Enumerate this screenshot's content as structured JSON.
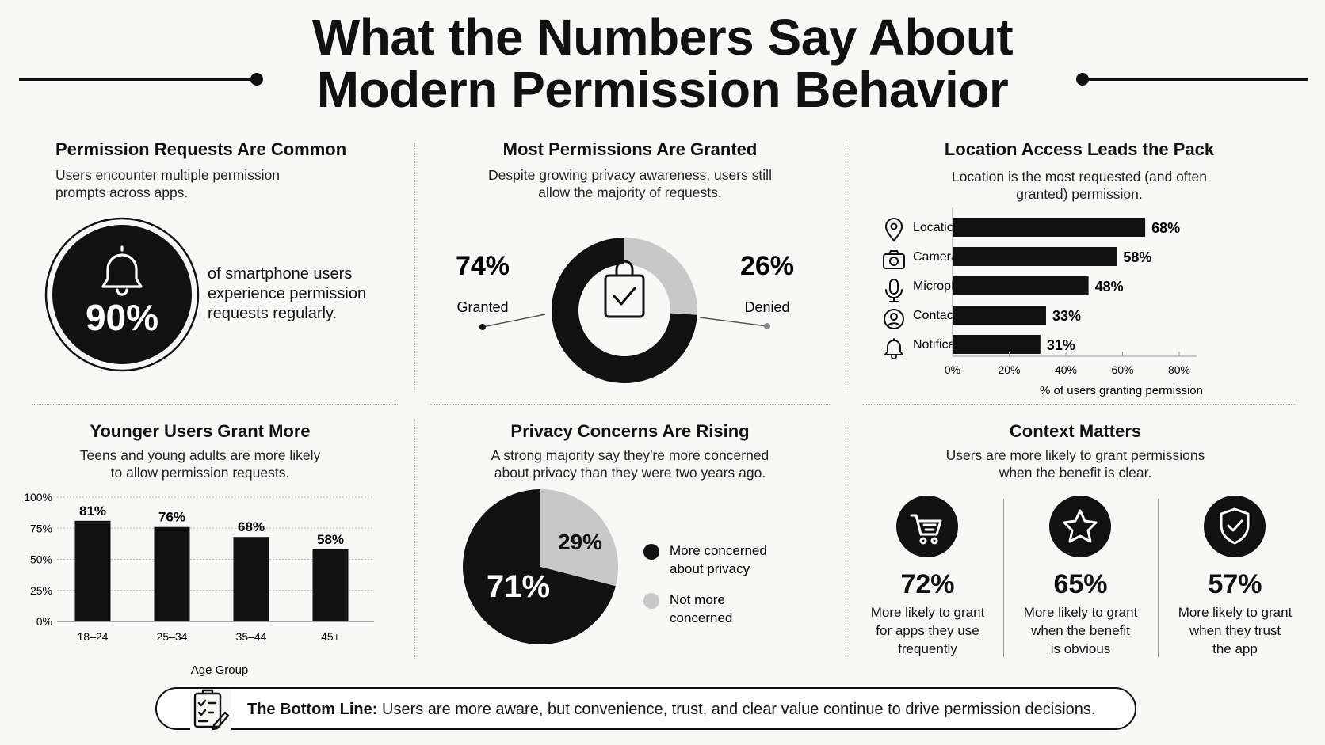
{
  "title": {
    "line1": "What the Numbers Say About",
    "line2": "Modern Permission Behavior"
  },
  "panels": {
    "common": {
      "title": "Permission Requests Are Common",
      "subtitle_lines": [
        "Users encounter multiple permission",
        "prompts across apps."
      ],
      "stat": "90%",
      "description_lines": [
        "of smartphone users",
        "experience permission",
        "requests regularly."
      ],
      "icon": "bell-icon"
    },
    "granted": {
      "title": "Most Permissions Are Granted",
      "subtitle_lines": [
        "Despite growing privacy awareness, users still",
        "allow the majority of requests."
      ],
      "icon": "clipboard-check-icon"
    },
    "location": {
      "title": "Location Access Leads the Pack",
      "subtitle_lines": [
        "Location is the most requested (and often",
        "granted) permission."
      ]
    },
    "younger": {
      "title": "Younger Users Grant More",
      "subtitle_lines": [
        "Teens and young adults are more likely",
        "to allow permission requests."
      ]
    },
    "privacy": {
      "title": "Privacy Concerns Are Rising",
      "subtitle_lines": [
        "A strong majority say they're more concerned",
        "about privacy than they were two years ago."
      ]
    },
    "context": {
      "title": "Context Matters",
      "subtitle_lines": [
        "Users are more likely to grant permissions",
        "when the benefit is clear."
      ],
      "items": [
        {
          "value": "72%",
          "icon": "cart-icon",
          "lines": [
            "More likely to grant",
            "for apps they use",
            "frequently"
          ]
        },
        {
          "value": "65%",
          "icon": "star-icon",
          "lines": [
            "More likely to grant",
            "when the benefit",
            "is obvious"
          ]
        },
        {
          "value": "57%",
          "icon": "shield-check-icon",
          "lines": [
            "More likely to grant",
            "when they trust",
            "the app"
          ]
        }
      ]
    }
  },
  "bottom_line": {
    "label": "The Bottom Line:",
    "text": "Users are more aware, but convenience, trust, and clear value continue to drive permission decisions.",
    "icon": "checklist-pen-icon"
  },
  "colors": {
    "dark": "#111111",
    "light": "#c8c8c8",
    "background": "#f8f8f7"
  },
  "chart_data": [
    {
      "type": "pie",
      "variant": "donut",
      "categories": [
        "Granted",
        "Denied"
      ],
      "values": [
        74,
        26
      ],
      "value_labels": [
        "74%",
        "26%"
      ],
      "colors": [
        "#111111",
        "#c8c8c8"
      ]
    },
    {
      "type": "bar",
      "orientation": "horizontal",
      "categories": [
        "Location",
        "Camera",
        "Microphone",
        "Contacts",
        "Notifications"
      ],
      "icons": [
        "map-pin-icon",
        "camera-icon",
        "microphone-icon",
        "user-circle-icon",
        "bell-icon"
      ],
      "values": [
        68,
        58,
        48,
        33,
        31
      ],
      "value_labels": [
        "68%",
        "58%",
        "48%",
        "33%",
        "31%"
      ],
      "xlabel": "% of users granting permission",
      "xlim": [
        0,
        80
      ],
      "ticks": [
        "0%",
        "20%",
        "40%",
        "60%",
        "80%"
      ],
      "grid": false
    },
    {
      "type": "bar",
      "categories": [
        "18–24",
        "25–34",
        "35–44",
        "45+"
      ],
      "values": [
        81,
        76,
        68,
        58
      ],
      "value_labels": [
        "81%",
        "76%",
        "68%",
        "58%"
      ],
      "xlabel": "Age Group",
      "ylim": [
        0,
        100
      ],
      "ticks": [
        "0%",
        "25%",
        "50%",
        "75%",
        "100%"
      ],
      "grid": true
    },
    {
      "type": "pie",
      "categories": [
        "More concerned about privacy",
        "Not more concerned"
      ],
      "legend_lines": [
        [
          "More concerned",
          "about privacy"
        ],
        [
          "Not more",
          "concerned"
        ]
      ],
      "values": [
        71,
        29
      ],
      "value_labels": [
        "71%",
        "29%"
      ],
      "colors": [
        "#111111",
        "#c8c8c8"
      ],
      "legend": "right"
    }
  ]
}
